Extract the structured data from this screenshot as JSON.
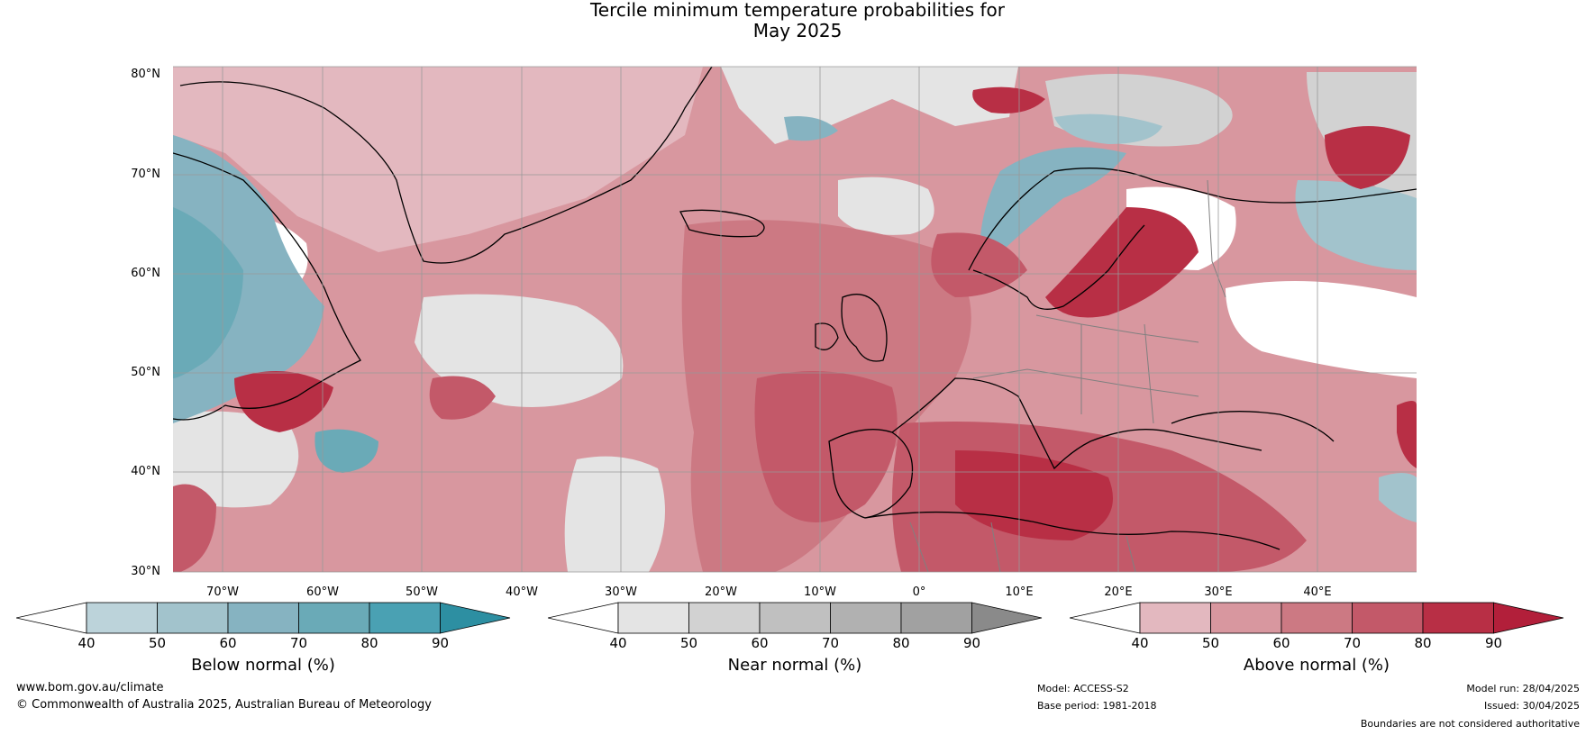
{
  "title_line1": "Tercile minimum temperature probabilities for",
  "title_line2": "May 2025",
  "lat_labels": [
    "80°N",
    "70°N",
    "60°N",
    "50°N",
    "40°N",
    "30°N"
  ],
  "lon_labels": [
    "70°W",
    "60°W",
    "50°W",
    "40°W",
    "30°W",
    "20°W",
    "10°W",
    "0°",
    "10°E",
    "20°E",
    "30°E",
    "40°E"
  ],
  "colorbars": [
    {
      "label": "Below normal (%)",
      "ticks": [
        "40",
        "50",
        "60",
        "70",
        "80",
        "90"
      ],
      "colors": [
        "#ffffff",
        "#bcd3da",
        "#a2c3cc",
        "#86b3c1",
        "#6aaab7",
        "#4aa1b3",
        "#2d8fa2"
      ]
    },
    {
      "label": "Near normal (%)",
      "ticks": [
        "40",
        "50",
        "60",
        "70",
        "80",
        "90"
      ],
      "colors": [
        "#ffffff",
        "#e4e4e4",
        "#d2d2d2",
        "#c0c0c0",
        "#b1b1b1",
        "#a1a1a1",
        "#8a8a8a"
      ]
    },
    {
      "label": "Above normal (%)",
      "ticks": [
        "40",
        "50",
        "60",
        "70",
        "80",
        "90"
      ],
      "colors": [
        "#ffffff",
        "#e3b8bf",
        "#d8979f",
        "#cc7983",
        "#c35969",
        "#b82f45",
        "#b21f3a"
      ]
    }
  ],
  "footer": {
    "website": "www.bom.gov.au/climate",
    "copyright": "© Commonwealth of Australia 2025, Australian Bureau of Meteorology",
    "model": "Model: ACCESS-S2",
    "base_period": "Base period: 1981-2018",
    "model_run": "Model run: 28/04/2025",
    "issued": "Issued: 30/04/2025",
    "disclaimer": "Boundaries are not considered authoritative"
  },
  "colors": {
    "above_60": "#d8979f",
    "above_70": "#cc7983",
    "above_80": "#c35969",
    "above_90": "#b82f45",
    "below_70": "#86b3c1",
    "below_80": "#6aaab7",
    "near_60": "#d2d2d2",
    "land_outline": "#000000",
    "border": "#808080"
  }
}
